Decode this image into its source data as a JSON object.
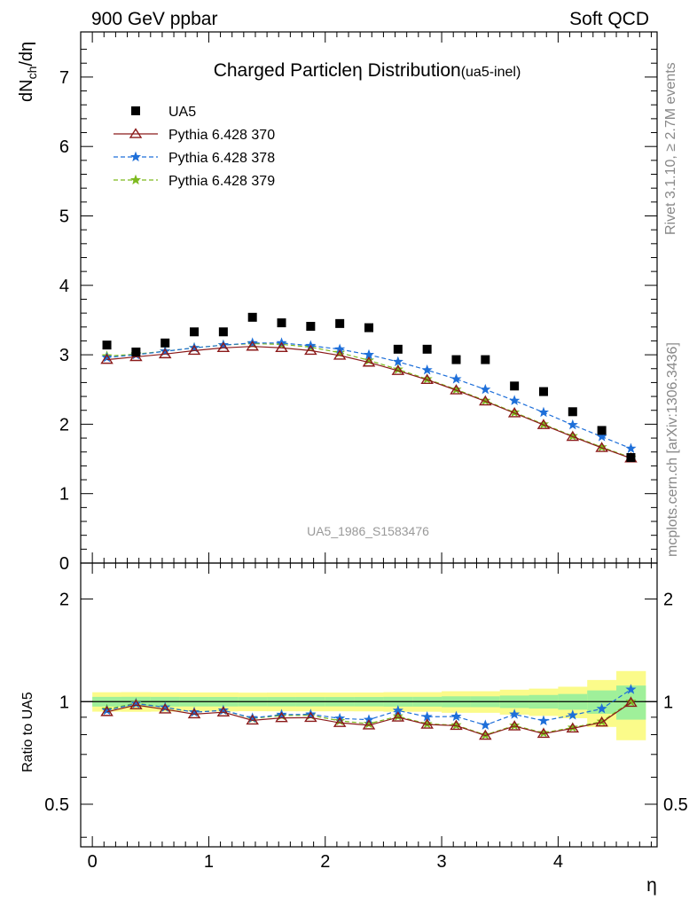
{
  "header": {
    "left": "900 GeV ppbar",
    "right": "Soft QCD"
  },
  "side_labels": {
    "rivet": "Rivet 3.1.10, ≥ 2.7M events",
    "mcplots": "mcplots.cern.ch [arXiv:1306.3436]"
  },
  "chart_data": {
    "type": "scatter",
    "title_main": "Charged Particle",
    "title_eta": "η",
    "title_rest": " Distribution",
    "title_sub": "(ua5-inel)",
    "xlabel": "η",
    "ylabel": "dN",
    "ylabel_sub": "ch",
    "ylabel_rest": "/dη",
    "ratio_ylabel": "Ratio to UA5",
    "watermark": "UA5_1986_S1583476",
    "xlim": [
      -0.1,
      4.85
    ],
    "ylim": [
      0,
      7.65
    ],
    "ratio_ylim": [
      0.375,
      2.55
    ],
    "x_ticks": [
      "0",
      "1",
      "2",
      "3",
      "4"
    ],
    "y_ticks": [
      "0",
      "1",
      "2",
      "3",
      "4",
      "5",
      "6",
      "7"
    ],
    "ratio_ticks": [
      "0.5",
      "1",
      "2"
    ],
    "x": [
      0.125,
      0.375,
      0.625,
      0.875,
      1.125,
      1.375,
      1.625,
      1.875,
      2.125,
      2.375,
      2.625,
      2.875,
      3.125,
      3.375,
      3.625,
      3.875,
      4.125,
      4.375,
      4.625
    ],
    "data_series": {
      "name": "UA5",
      "color": "#000000",
      "values": [
        3.14,
        3.04,
        3.17,
        3.33,
        3.33,
        3.54,
        3.46,
        3.41,
        3.45,
        3.39,
        3.08,
        3.08,
        2.93,
        2.93,
        2.55,
        2.47,
        2.18,
        1.91,
        1.52
      ],
      "band_errors": [
        0.05,
        0.05,
        0.05,
        0.05,
        0.05,
        0.05,
        0.05,
        0.05,
        0.05,
        0.05,
        0.05,
        0.05,
        0.06,
        0.06,
        0.07,
        0.08,
        0.09,
        0.14,
        0.18
      ]
    },
    "series": [
      {
        "name": "Pythia 6.428 370",
        "color": "#8b1a1a",
        "style": "solid-triangle",
        "values": [
          2.93,
          2.97,
          3.01,
          3.06,
          3.1,
          3.12,
          3.1,
          3.06,
          2.99,
          2.89,
          2.77,
          2.64,
          2.49,
          2.33,
          2.16,
          1.99,
          1.82,
          1.66,
          1.51
        ]
      },
      {
        "name": "Pythia 6.428 378",
        "color": "#1e6fd9",
        "style": "dashed-star",
        "values": [
          2.96,
          3.0,
          3.05,
          3.1,
          3.14,
          3.17,
          3.17,
          3.13,
          3.08,
          3.0,
          2.9,
          2.78,
          2.65,
          2.5,
          2.34,
          2.17,
          1.99,
          1.82,
          1.65
        ]
      },
      {
        "name": "Pythia 6.428 379",
        "color": "#7dba1e",
        "style": "dashed-star",
        "values": [
          2.98,
          3.01,
          3.05,
          3.1,
          3.14,
          3.16,
          3.15,
          3.11,
          3.03,
          2.92,
          2.79,
          2.65,
          2.5,
          2.34,
          2.17,
          2.0,
          1.83,
          1.67,
          1.52
        ]
      }
    ]
  }
}
